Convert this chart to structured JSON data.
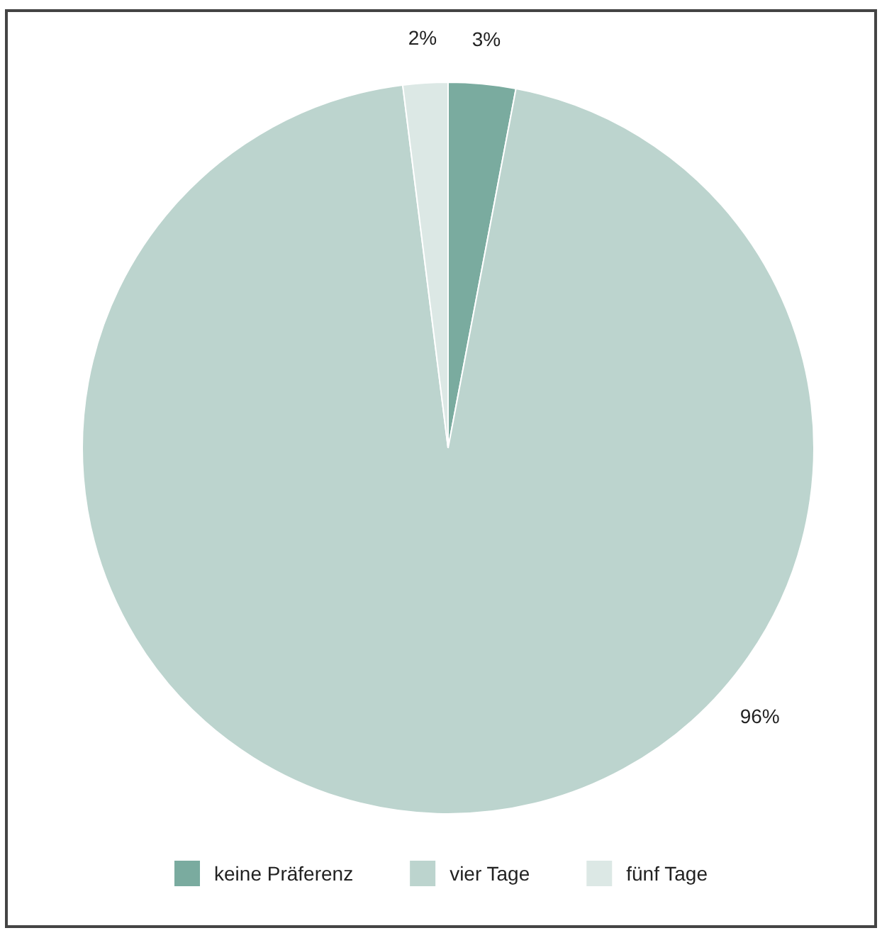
{
  "chart_data": {
    "type": "pie",
    "categories": [
      "keine Präferenz",
      "vier Tage",
      "fünf Tage"
    ],
    "values": [
      3,
      96,
      2
    ],
    "value_labels": [
      "3%",
      "96%",
      "2%"
    ],
    "colors": [
      "#7aab9f",
      "#bcd4ce",
      "#dce8e5"
    ],
    "legend": "bottom"
  }
}
